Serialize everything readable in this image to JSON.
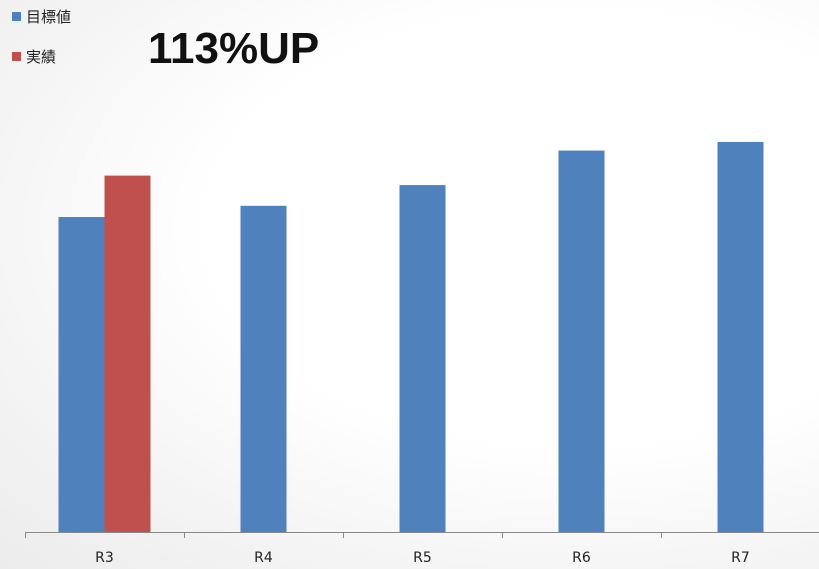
{
  "headline": "113%UP",
  "legend": {
    "items": [
      {
        "label": "目標値",
        "color": "#4f81bd"
      },
      {
        "label": "実績",
        "color": "#c0504d"
      }
    ]
  },
  "chart_data": {
    "type": "bar",
    "categories": [
      "R3",
      "R4",
      "R5",
      "R6",
      "R7"
    ],
    "series": [
      {
        "name": "目標値",
        "color": "#4f81bd",
        "values": [
          365,
          378,
          402,
          442,
          452
        ]
      },
      {
        "name": "実績",
        "color": "#c0504d",
        "values": [
          413,
          null,
          null,
          null,
          null
        ]
      }
    ],
    "title": "",
    "xlabel": "",
    "ylabel": "",
    "ylim": [
      0,
      500
    ],
    "grid": false,
    "legend_position": "top-left",
    "annotation": "113%UP"
  }
}
